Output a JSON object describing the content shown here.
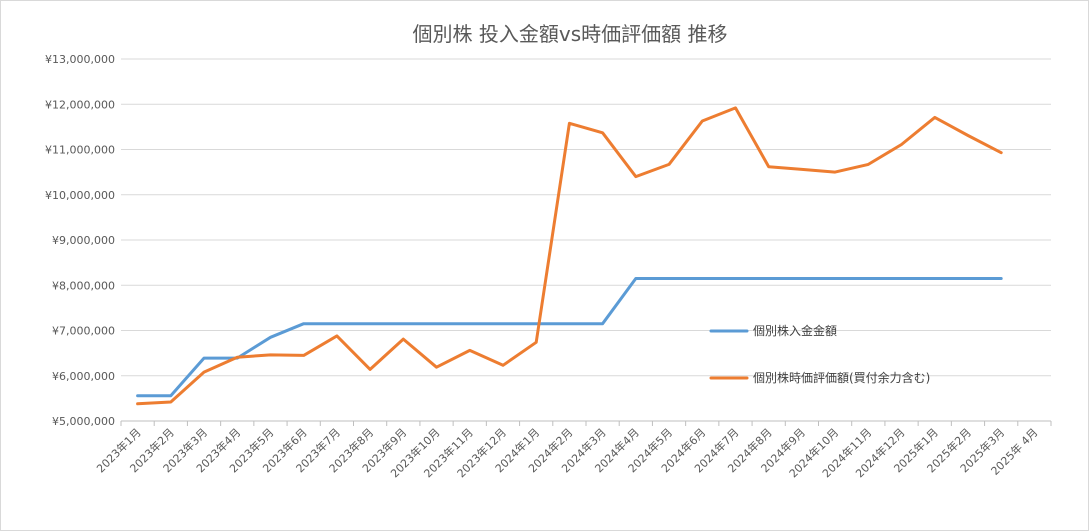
{
  "chart_data": {
    "type": "line",
    "title": "個別株 投入金額vs時価評価額 推移",
    "xlabel": "",
    "ylabel": "",
    "ylim": [
      5000000,
      13000000
    ],
    "y_ticks": [
      "¥5,000,000",
      "¥6,000,000",
      "¥7,000,000",
      "¥8,000,000",
      "¥9,000,000",
      "¥10,000,000",
      "¥11,000,000",
      "¥12,000,000",
      "¥13,000,000"
    ],
    "grid": true,
    "legend_position": "right",
    "categories": [
      "2023年1月",
      "2023年2月",
      "2023年3月",
      "2023年4月",
      "2023年5月",
      "2023年6月",
      "2023年7月",
      "2023年8月",
      "2023年9月",
      "2023年10月",
      "2023年11月",
      "2023年12月",
      "2024年1月",
      "2024年2月",
      "2024年3月",
      "2024年4月",
      "2024年5月",
      "2024年6月",
      "2024年7月",
      "2024年8月",
      "2024年9月",
      "2024年10月",
      "2024年11月",
      "2024年12月",
      "2025年1月",
      "2025年2月",
      "2025年3月",
      "2025年 4月"
    ],
    "series": [
      {
        "name": "個別株入金金額",
        "color": "#5B9BD5",
        "values": [
          5560000,
          5560000,
          6390000,
          6390000,
          6850000,
          7150000,
          7150000,
          7150000,
          7150000,
          7150000,
          7150000,
          7150000,
          7150000,
          7150000,
          7150000,
          8150000,
          8150000,
          8150000,
          8150000,
          8150000,
          8150000,
          8150000,
          8150000,
          8150000,
          8150000,
          8150000,
          8150000,
          null
        ]
      },
      {
        "name": "個別株時価評価額(買付余力含む)",
        "color": "#ED7D31",
        "values": [
          5380000,
          5420000,
          6080000,
          6410000,
          6460000,
          6450000,
          6880000,
          6140000,
          6810000,
          6190000,
          6560000,
          6230000,
          6740000,
          11580000,
          11370000,
          10400000,
          10670000,
          11630000,
          11920000,
          10620000,
          10560000,
          10500000,
          10670000,
          11110000,
          11710000,
          11310000,
          10930000,
          null
        ]
      }
    ]
  }
}
